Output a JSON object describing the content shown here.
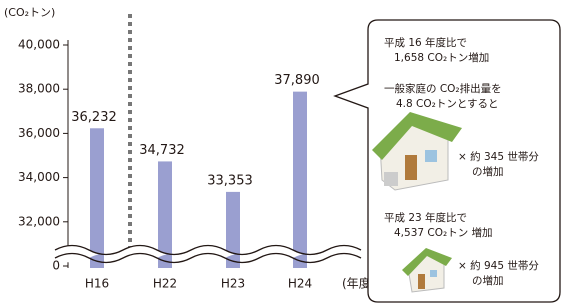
{
  "chart_data": {
    "type": "bar",
    "y_unit": "(CO₂トン)",
    "x_unit": "(年度)",
    "categories": [
      "H16",
      "H22",
      "H23",
      "H24"
    ],
    "values": [
      36232,
      34732,
      33353,
      37890
    ],
    "value_labels": [
      "36,232",
      "34,732",
      "33,353",
      "37,890"
    ],
    "color": "#9a9fd0",
    "ylim": [
      30000,
      40000
    ],
    "yticks": [
      {
        "value": 0,
        "label": "0"
      },
      {
        "value": 32000,
        "label": "32,000"
      },
      {
        "value": 34000,
        "label": "34,000"
      },
      {
        "value": 36000,
        "label": "36,000"
      },
      {
        "value": 38000,
        "label": "38,000"
      },
      {
        "value": 40000,
        "label": "40,000"
      }
    ],
    "axis_break": true,
    "annotations": [
      "平成 16 年度比で",
      "1,658 CO₂トン増加",
      "一般家庭の CO₂排出量を",
      "4.8 CO₂トンとすると",
      "× 約 345 世帯分",
      "の増加",
      "平成 23 年度比で",
      "4,537 CO₂トン 増加",
      "× 約 945 世帯分",
      "の増加"
    ]
  }
}
